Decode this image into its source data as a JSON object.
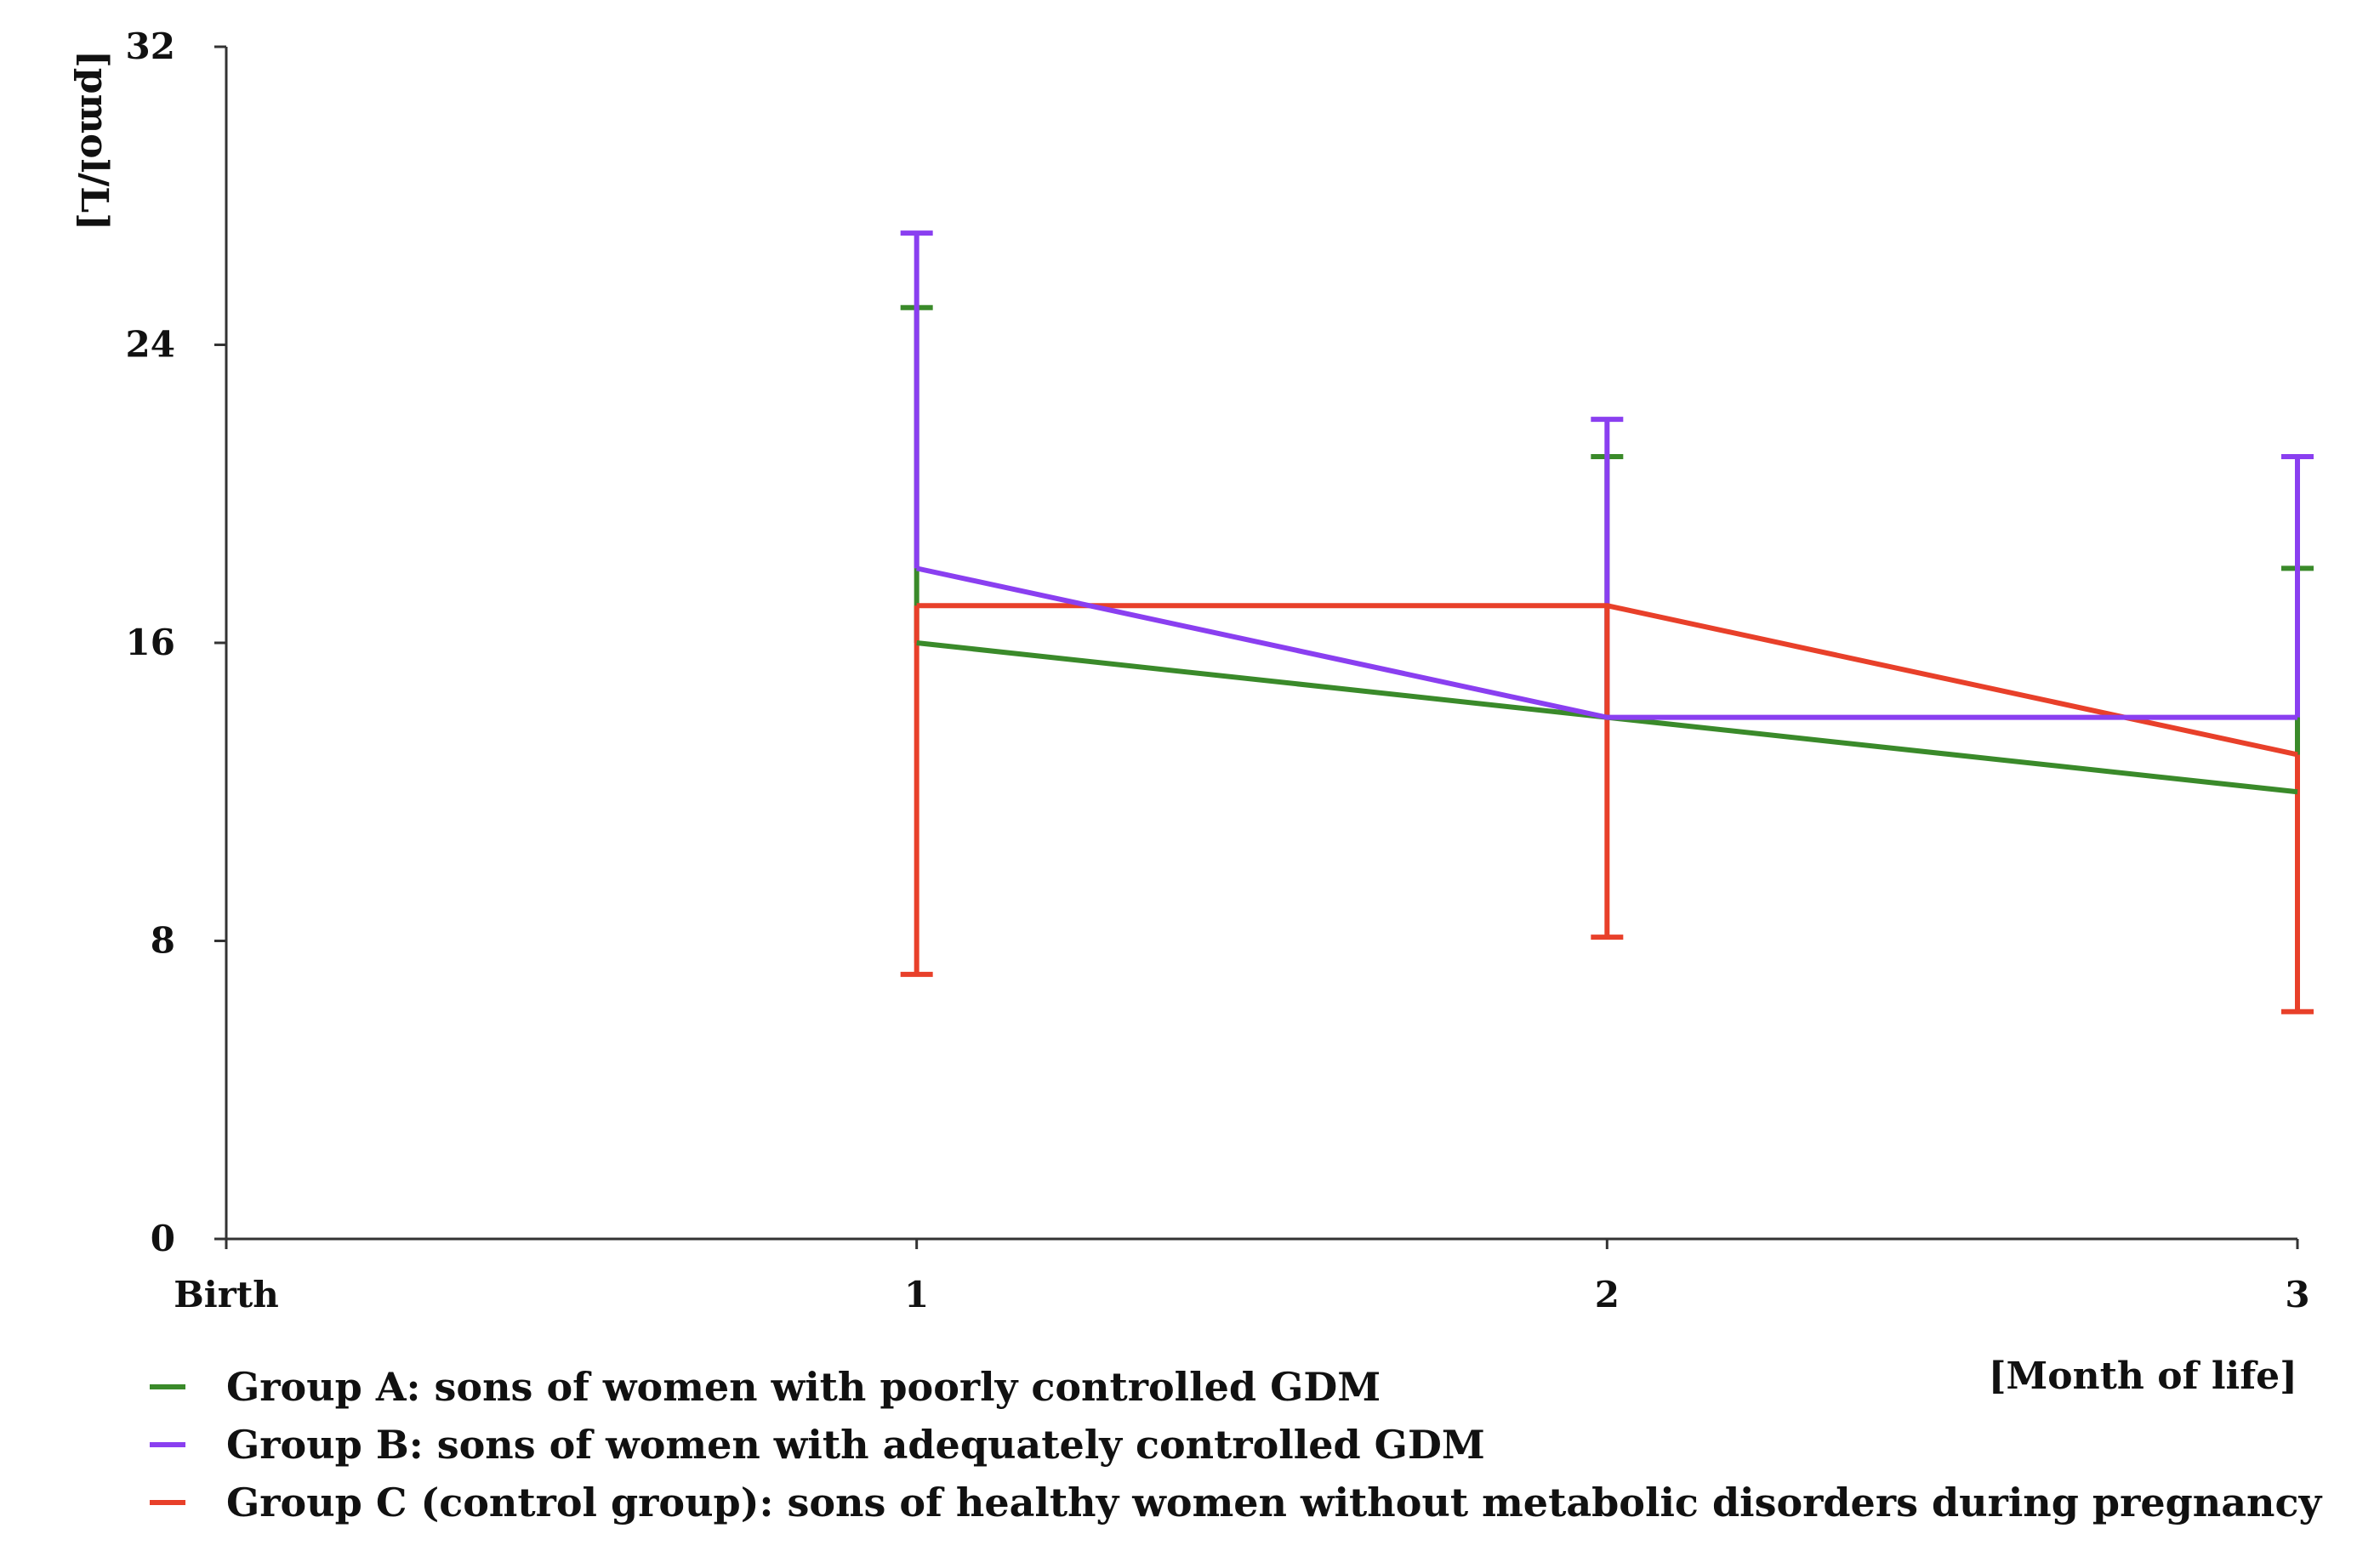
{
  "chart_data": {
    "type": "line",
    "title": "",
    "xlabel": "[Month of life]",
    "ylabel": "[pmol/L]",
    "categories": [
      "Birth",
      "1",
      "2",
      "3"
    ],
    "ylim": [
      0,
      32
    ],
    "yticks": [
      0,
      8,
      16,
      24,
      32
    ],
    "grid": false,
    "legend_position": "bottom-left",
    "series": [
      {
        "name": "Group A: sons of women with poorly controlled GDM",
        "color": "#3a8a2a",
        "points": [
          {
            "x": "1",
            "value": 16,
            "upper": 25,
            "lower": null
          },
          {
            "x": "2",
            "value": 14,
            "upper": 21,
            "lower": null
          },
          {
            "x": "3",
            "value": 12,
            "upper": 18,
            "lower": null
          }
        ]
      },
      {
        "name": "Group B: sons of women with adequately controlled GDM",
        "color": "#8a3ff0",
        "points": [
          {
            "x": "1",
            "value": 18,
            "upper": 27,
            "lower": null
          },
          {
            "x": "2",
            "value": 14,
            "upper": 22,
            "lower": null
          },
          {
            "x": "3",
            "value": 14,
            "upper": 21,
            "lower": null
          }
        ]
      },
      {
        "name": "Group C (control group): sons of healthy women without metabolic disorders during pregnancy",
        "color": "#e8402a",
        "points": [
          {
            "x": "1",
            "value": 17,
            "upper": null,
            "lower": 7.1
          },
          {
            "x": "2",
            "value": 17,
            "upper": null,
            "lower": 8.1
          },
          {
            "x": "3",
            "value": 13,
            "upper": null,
            "lower": 6.1
          }
        ]
      }
    ]
  }
}
